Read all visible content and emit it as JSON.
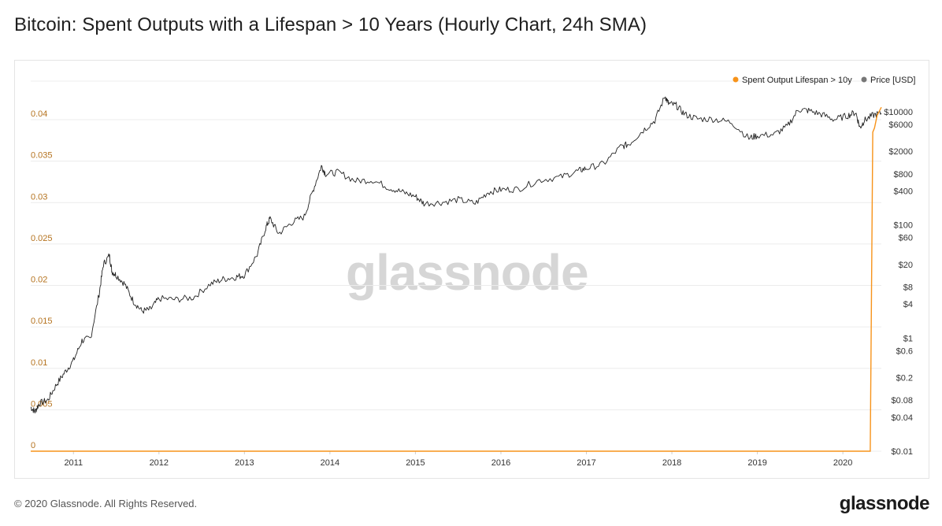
{
  "header": {
    "title": "Bitcoin: Spent Outputs with a Lifespan > 10 Years (Hourly Chart, 24h SMA)"
  },
  "footer": {
    "copyright": "© 2020 Glassnode. All Rights Reserved.",
    "brand": "glassnode"
  },
  "watermark": "glassnode",
  "colors": {
    "spent_output": "#f7931a",
    "price": "#777777",
    "left_axis_text": "#b5731f",
    "grid": "#ececec"
  },
  "chart_data": {
    "type": "line",
    "title": "Bitcoin: Spent Outputs with a Lifespan > 10 Years (Hourly Chart, 24h SMA)",
    "legend": {
      "placement": "top-right",
      "entries": [
        "Spent Output Lifespan > 10y",
        "Price [USD]"
      ]
    },
    "x_ticks": [
      "2011",
      "2012",
      "2013",
      "2014",
      "2015",
      "2016",
      "2017",
      "2018",
      "2019",
      "2020"
    ],
    "xlim": [
      2010.5,
      2020.45
    ],
    "y_left": {
      "ticks": [
        "0",
        "0.005",
        "0.01",
        "0.015",
        "0.02",
        "0.025",
        "0.03",
        "0.035",
        "0.04"
      ],
      "ylim": [
        0,
        0.04
      ]
    },
    "y_right": {
      "scale": "log",
      "ticks": [
        "$0.01",
        "$0.04",
        "$0.08",
        "$0.2",
        "$0.6",
        "$1",
        "$4",
        "$8",
        "$20",
        "$60",
        "$100",
        "$400",
        "$800",
        "$2000",
        "$6000",
        "$10000"
      ],
      "tick_values": [
        0.01,
        0.04,
        0.08,
        0.2,
        0.6,
        1,
        4,
        8,
        20,
        60,
        100,
        400,
        800,
        2000,
        6000,
        10000
      ],
      "ylim": [
        0.01,
        10000
      ]
    },
    "grid": true,
    "series": [
      {
        "name": "Spent Output Lifespan > 10y",
        "axis": "left",
        "x": [
          2010.5,
          2020.0,
          2020.3,
          2020.32,
          2020.35,
          2020.37,
          2020.4,
          2020.45
        ],
        "y": [
          0,
          0,
          0,
          0,
          0.0385,
          0.039,
          0.0405,
          0.0415
        ]
      },
      {
        "name": "Price [USD]",
        "axis": "right",
        "x": [
          2010.5,
          2010.55,
          2010.6,
          2010.7,
          2010.8,
          2010.9,
          2011.0,
          2011.1,
          2011.2,
          2011.3,
          2011.35,
          2011.42,
          2011.45,
          2011.5,
          2011.6,
          2011.7,
          2011.8,
          2011.9,
          2012.0,
          2012.2,
          2012.4,
          2012.6,
          2012.75,
          2012.9,
          2013.0,
          2013.15,
          2013.25,
          2013.3,
          2013.4,
          2013.55,
          2013.7,
          2013.8,
          2013.9,
          2013.95,
          2014.1,
          2014.3,
          2014.5,
          2014.7,
          2014.85,
          2015.0,
          2015.1,
          2015.3,
          2015.5,
          2015.7,
          2015.85,
          2016.0,
          2016.2,
          2016.45,
          2016.7,
          2016.9,
          2017.0,
          2017.2,
          2017.4,
          2017.5,
          2017.65,
          2017.8,
          2017.92,
          2017.96,
          2018.05,
          2018.15,
          2018.3,
          2018.5,
          2018.7,
          2018.9,
          2019.0,
          2019.2,
          2019.35,
          2019.48,
          2019.6,
          2019.75,
          2019.9,
          2020.05,
          2020.15,
          2020.2,
          2020.25,
          2020.35,
          2020.45
        ],
        "y": [
          0.06,
          0.05,
          0.07,
          0.08,
          0.15,
          0.25,
          0.4,
          0.9,
          1.0,
          6,
          20,
          29,
          15,
          13,
          9,
          4.5,
          3,
          3.2,
          5,
          4.8,
          5.2,
          9,
          11,
          12,
          13,
          30,
          90,
          130,
          70,
          110,
          140,
          400,
          1100,
          800,
          850,
          600,
          620,
          450,
          380,
          320,
          240,
          250,
          280,
          240,
          380,
          420,
          430,
          620,
          700,
          900,
          1000,
          1200,
          2400,
          2700,
          4500,
          7000,
          19000,
          14000,
          13000,
          9000,
          7500,
          7400,
          6500,
          3400,
          3800,
          4000,
          5500,
          11000,
          10500,
          9000,
          7300,
          8500,
          9800,
          5200,
          7000,
          8700,
          9500
        ]
      }
    ]
  }
}
